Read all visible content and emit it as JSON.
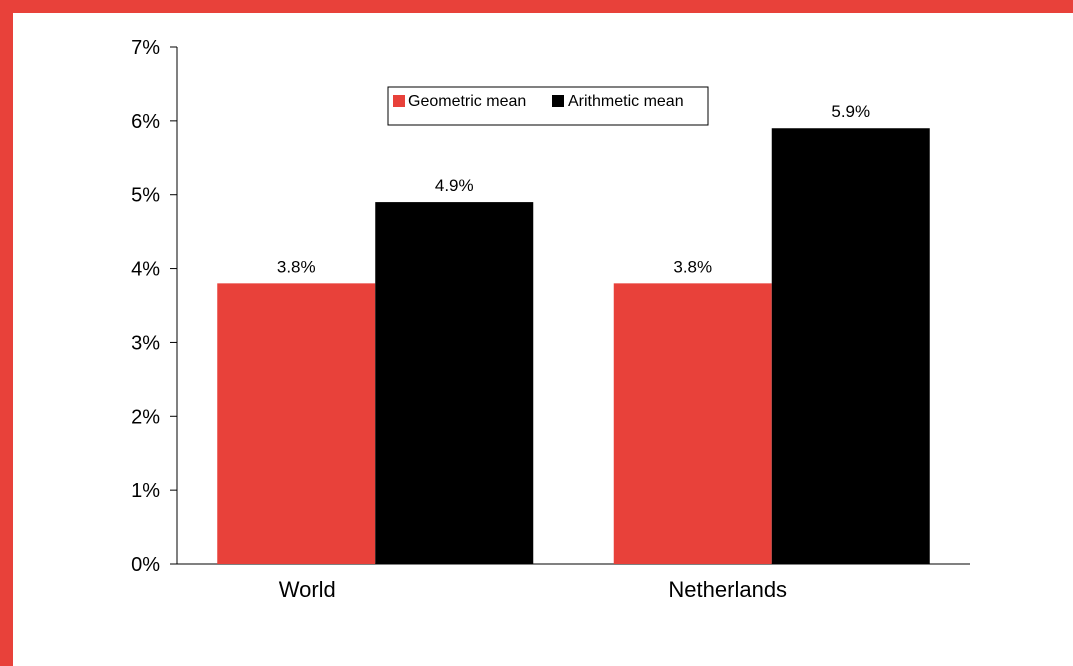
{
  "chart_data": {
    "type": "bar",
    "categories": [
      "World",
      "Netherlands"
    ],
    "series": [
      {
        "name": "Geometric mean",
        "values": [
          3.8,
          3.8
        ],
        "labels": [
          "3.8%",
          "3.8%"
        ],
        "color": "#e8413a"
      },
      {
        "name": "Arithmetic mean",
        "values": [
          4.9,
          5.9
        ],
        "labels": [
          "4.9%",
          "5.9%"
        ],
        "color": "#000000"
      }
    ],
    "yticks": [
      "0%",
      "1%",
      "2%",
      "3%",
      "4%",
      "5%",
      "6%",
      "7%"
    ],
    "ylim": [
      0,
      7
    ],
    "title": "",
    "xlabel": "",
    "ylabel": "",
    "grid": false,
    "legend_position": "top-center"
  },
  "colors": {
    "border": "#e8413a"
  }
}
